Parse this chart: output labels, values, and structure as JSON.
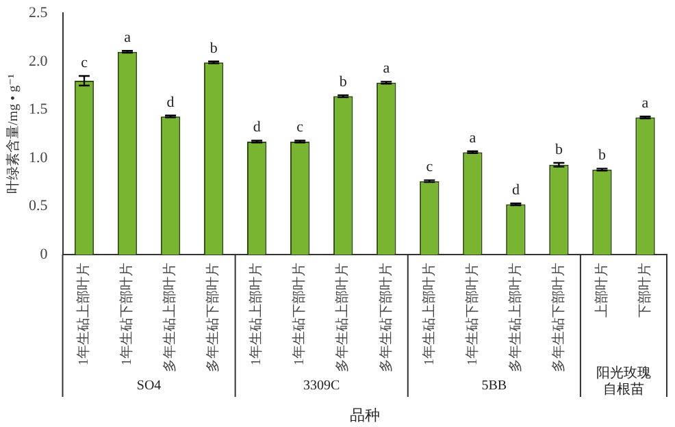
{
  "chart_data": {
    "type": "bar",
    "xlabel": "品种",
    "ylabel": "叶绿素含量/mg • g⁻¹",
    "categories": [
      "1年生砧上部叶片",
      "1年生砧下部叶片",
      "多年生砧上部叶片",
      "多年生砧下部叶片",
      "1年生砧上部叶片",
      "1年生砧下部叶片",
      "多年生砧上部叶片",
      "多年生砧下部叶片",
      "1年生砧上部叶片",
      "1年生砧下部叶片",
      "多年生砧上部叶片",
      "多年生砧下部叶片",
      "上部叶片",
      "下部叶片"
    ],
    "values": [
      1.8,
      2.1,
      1.43,
      1.99,
      1.17,
      1.17,
      1.64,
      1.78,
      0.76,
      1.06,
      0.52,
      0.93,
      0.88,
      1.42
    ],
    "errors": [
      0.05,
      0.01,
      0.01,
      0.01,
      0.01,
      0.01,
      0.01,
      0.01,
      0.01,
      0.01,
      0.01,
      0.02,
      0.01,
      0.01
    ],
    "value_labels": [
      "c",
      "a",
      "d",
      "b",
      "d",
      "c",
      "b",
      "a",
      "c",
      "a",
      "d",
      "b",
      "b",
      "a"
    ],
    "color": "#7ab531",
    "ylim": [
      0,
      2.5
    ],
    "yticks": [
      {
        "value": 0,
        "label": "0"
      },
      {
        "value": 0.5,
        "label": "0.5"
      },
      {
        "value": 1,
        "label": "1.0"
      },
      {
        "value": 1.5,
        "label": "1.5"
      },
      {
        "value": 2,
        "label": "2.0"
      },
      {
        "value": 2.5,
        "label": "2.5"
      }
    ],
    "annotations": [
      "SO4",
      "3309C",
      "5BB",
      "阳光玫瑰自根苗"
    ],
    "grid": false,
    "legend": false
  }
}
